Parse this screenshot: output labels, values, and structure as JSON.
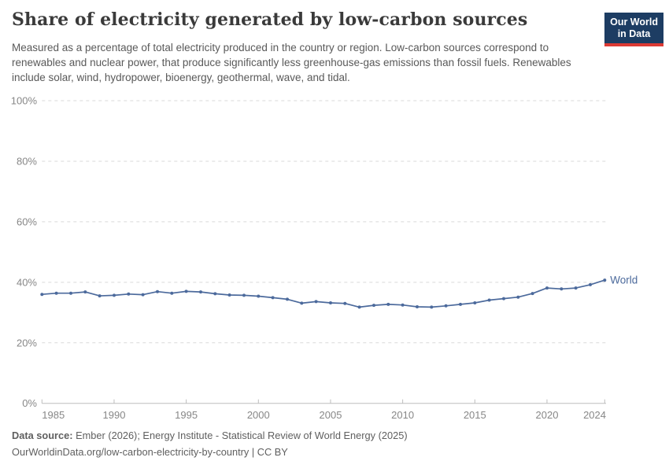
{
  "header": {
    "title": "Share of electricity generated by low-carbon sources",
    "subtitle": "Measured as a percentage of total electricity produced in the country or region. Low-carbon sources correspond to renewables and nuclear power, that produce significantly less greenhouse-gas emissions than fossil fuels. Renewables include solar, wind, hydropower, bioenergy, geothermal, wave, and tidal.",
    "logo": {
      "line1": "Our World",
      "line2": "in Data",
      "bg_color": "#1d3d63",
      "stripe_color": "#dc3a34"
    }
  },
  "chart_data": {
    "type": "line",
    "title": "Share of electricity generated by low-carbon sources",
    "xlabel": "",
    "ylabel": "",
    "ylim": [
      0,
      100
    ],
    "yticks": [
      0,
      20,
      40,
      60,
      80,
      100
    ],
    "ytick_labels": [
      "0%",
      "20%",
      "40%",
      "60%",
      "80%",
      "100%"
    ],
    "xticks": [
      1985,
      1990,
      1995,
      2000,
      2005,
      2010,
      2015,
      2020,
      2024
    ],
    "grid": "horizontal-dashed",
    "legend": "inline-label-at-line-end",
    "x": [
      1985,
      1986,
      1987,
      1988,
      1989,
      1990,
      1991,
      1992,
      1993,
      1994,
      1995,
      1996,
      1997,
      1998,
      1999,
      2000,
      2001,
      2002,
      2003,
      2004,
      2005,
      2006,
      2007,
      2008,
      2009,
      2010,
      2011,
      2012,
      2013,
      2014,
      2015,
      2016,
      2017,
      2018,
      2019,
      2020,
      2021,
      2022,
      2023,
      2024
    ],
    "series": [
      {
        "name": "World",
        "color": "#4c6a9c",
        "values": [
          36.0,
          36.4,
          36.4,
          36.8,
          35.5,
          35.7,
          36.1,
          35.9,
          36.9,
          36.4,
          37.0,
          36.8,
          36.2,
          35.8,
          35.7,
          35.4,
          34.9,
          34.4,
          33.1,
          33.6,
          33.2,
          33.0,
          31.8,
          32.4,
          32.7,
          32.5,
          31.9,
          31.8,
          32.2,
          32.7,
          33.2,
          34.1,
          34.6,
          35.1,
          36.3,
          38.1,
          37.8,
          38.1,
          39.2,
          40.7
        ]
      }
    ],
    "colors": {
      "gridline": "#d9d9d9",
      "axis": "#bdbdbd",
      "tick_label": "#878787"
    }
  },
  "footer": {
    "source_label": "Data source:",
    "source_text": " Ember (2026); Energy Institute - Statistical Review of World Energy (2025)",
    "url_line": "OurWorldinData.org/low-carbon-electricity-by-country | CC BY"
  }
}
